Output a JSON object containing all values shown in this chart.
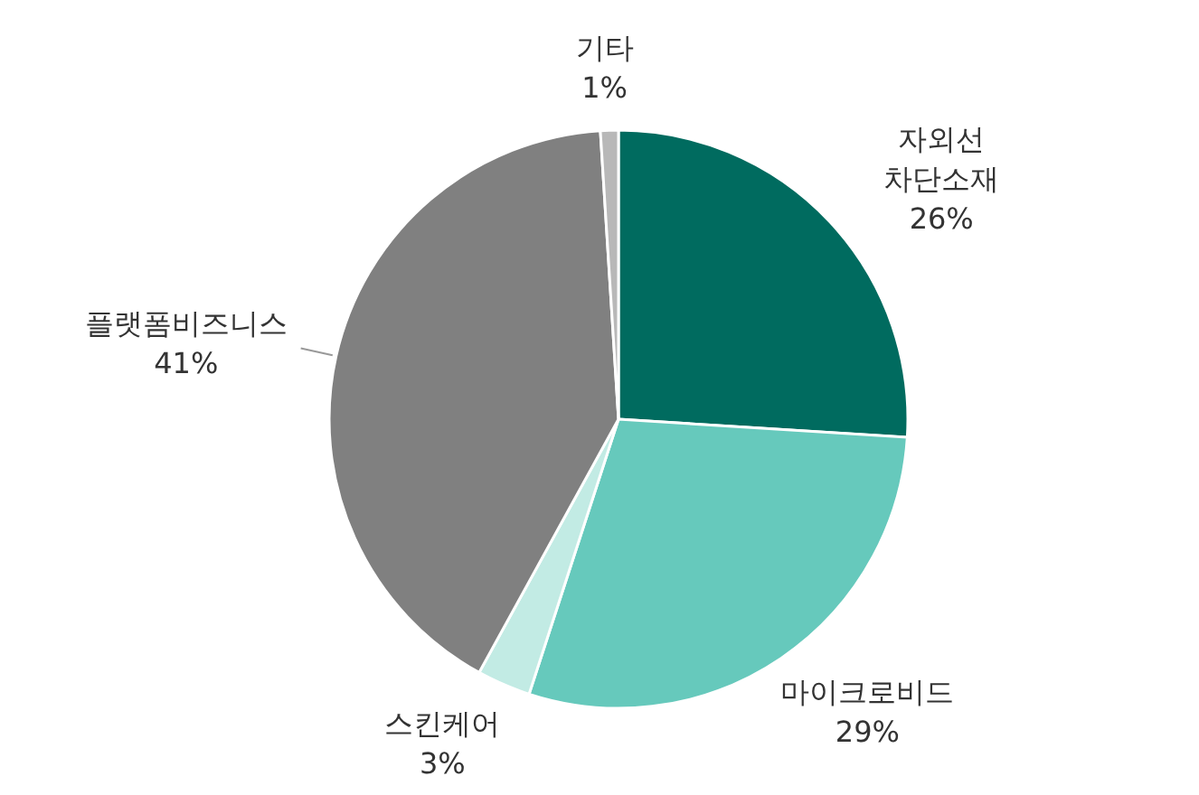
{
  "chart_data": {
    "type": "pie",
    "categories": [
      "자외선 차단소재",
      "마이크로비드",
      "스킨케어",
      "플랫폼비즈니스",
      "기타"
    ],
    "values": [
      26,
      29,
      3,
      41,
      1
    ],
    "value_labels": [
      "26%",
      "29%",
      "3%",
      "41%",
      "1%"
    ],
    "colors": [
      "#006b5f",
      "#66c9bc",
      "#c2ebe4",
      "#808080",
      "#b8b8b8"
    ]
  }
}
